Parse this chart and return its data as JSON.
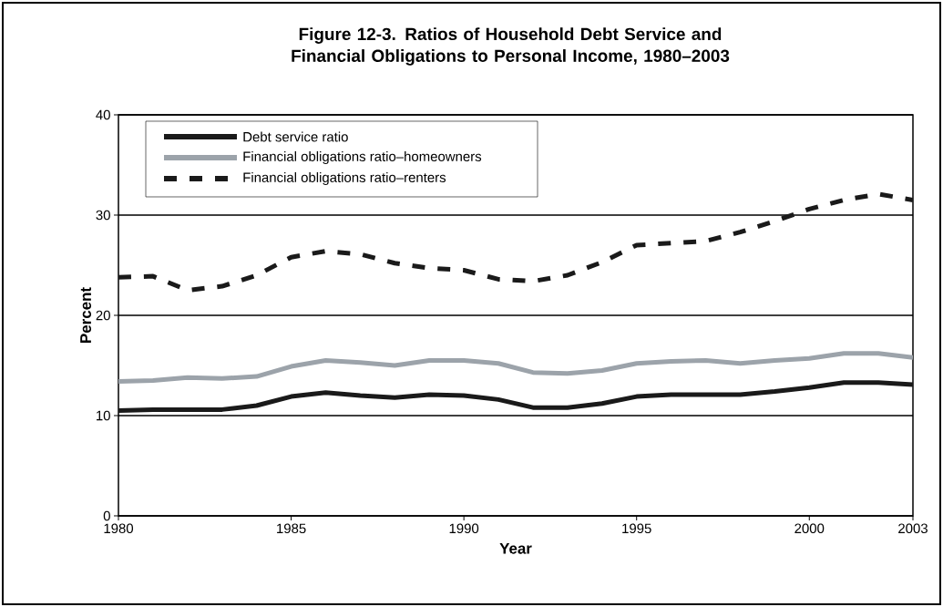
{
  "chart_data": {
    "type": "line",
    "title": "Figure 12-3. Ratios of Household Debt Service and Financial Obligations to Personal Income, 1980–2003",
    "xlabel": "Year",
    "ylabel": "Percent",
    "x": [
      1980,
      1981,
      1982,
      1983,
      1984,
      1985,
      1986,
      1987,
      1988,
      1989,
      1990,
      1991,
      1992,
      1993,
      1994,
      1995,
      1996,
      1997,
      1998,
      1999,
      2000,
      2001,
      2002,
      2003
    ],
    "series": [
      {
        "name": "Debt service ratio",
        "color": "#1a1a1a",
        "line_style": "solid",
        "values": [
          10.5,
          10.6,
          10.6,
          10.6,
          11.0,
          11.9,
          12.3,
          12.0,
          11.8,
          12.1,
          12.0,
          11.6,
          10.8,
          10.8,
          11.2,
          11.9,
          12.1,
          12.1,
          12.1,
          12.4,
          12.8,
          13.3,
          13.3,
          13.1
        ]
      },
      {
        "name": "Financial obligations ratio–homeowners",
        "color": "#9ca3aa",
        "line_style": "solid",
        "values": [
          13.4,
          13.5,
          13.8,
          13.7,
          13.9,
          14.9,
          15.5,
          15.3,
          15.0,
          15.5,
          15.5,
          15.2,
          14.3,
          14.2,
          14.5,
          15.2,
          15.4,
          15.5,
          15.2,
          15.5,
          15.7,
          16.2,
          16.2,
          15.8
        ]
      },
      {
        "name": "Financial obligations ratio–renters",
        "color": "#1a1a1a",
        "line_style": "dashed",
        "values": [
          23.8,
          23.9,
          22.5,
          22.9,
          24.0,
          25.8,
          26.4,
          26.1,
          25.2,
          24.7,
          24.5,
          23.6,
          23.4,
          24.0,
          25.3,
          27.0,
          27.2,
          27.4,
          28.3,
          29.4,
          30.6,
          31.5,
          32.1,
          31.5
        ]
      }
    ],
    "xlim": [
      1980,
      2003
    ],
    "xticks": [
      1980,
      1985,
      1990,
      1995,
      2000,
      2003
    ],
    "ylim": [
      0,
      40
    ],
    "yticks": [
      0,
      10,
      20,
      30,
      40
    ],
    "grid": "y",
    "legend": "top left",
    "marker": "none"
  }
}
